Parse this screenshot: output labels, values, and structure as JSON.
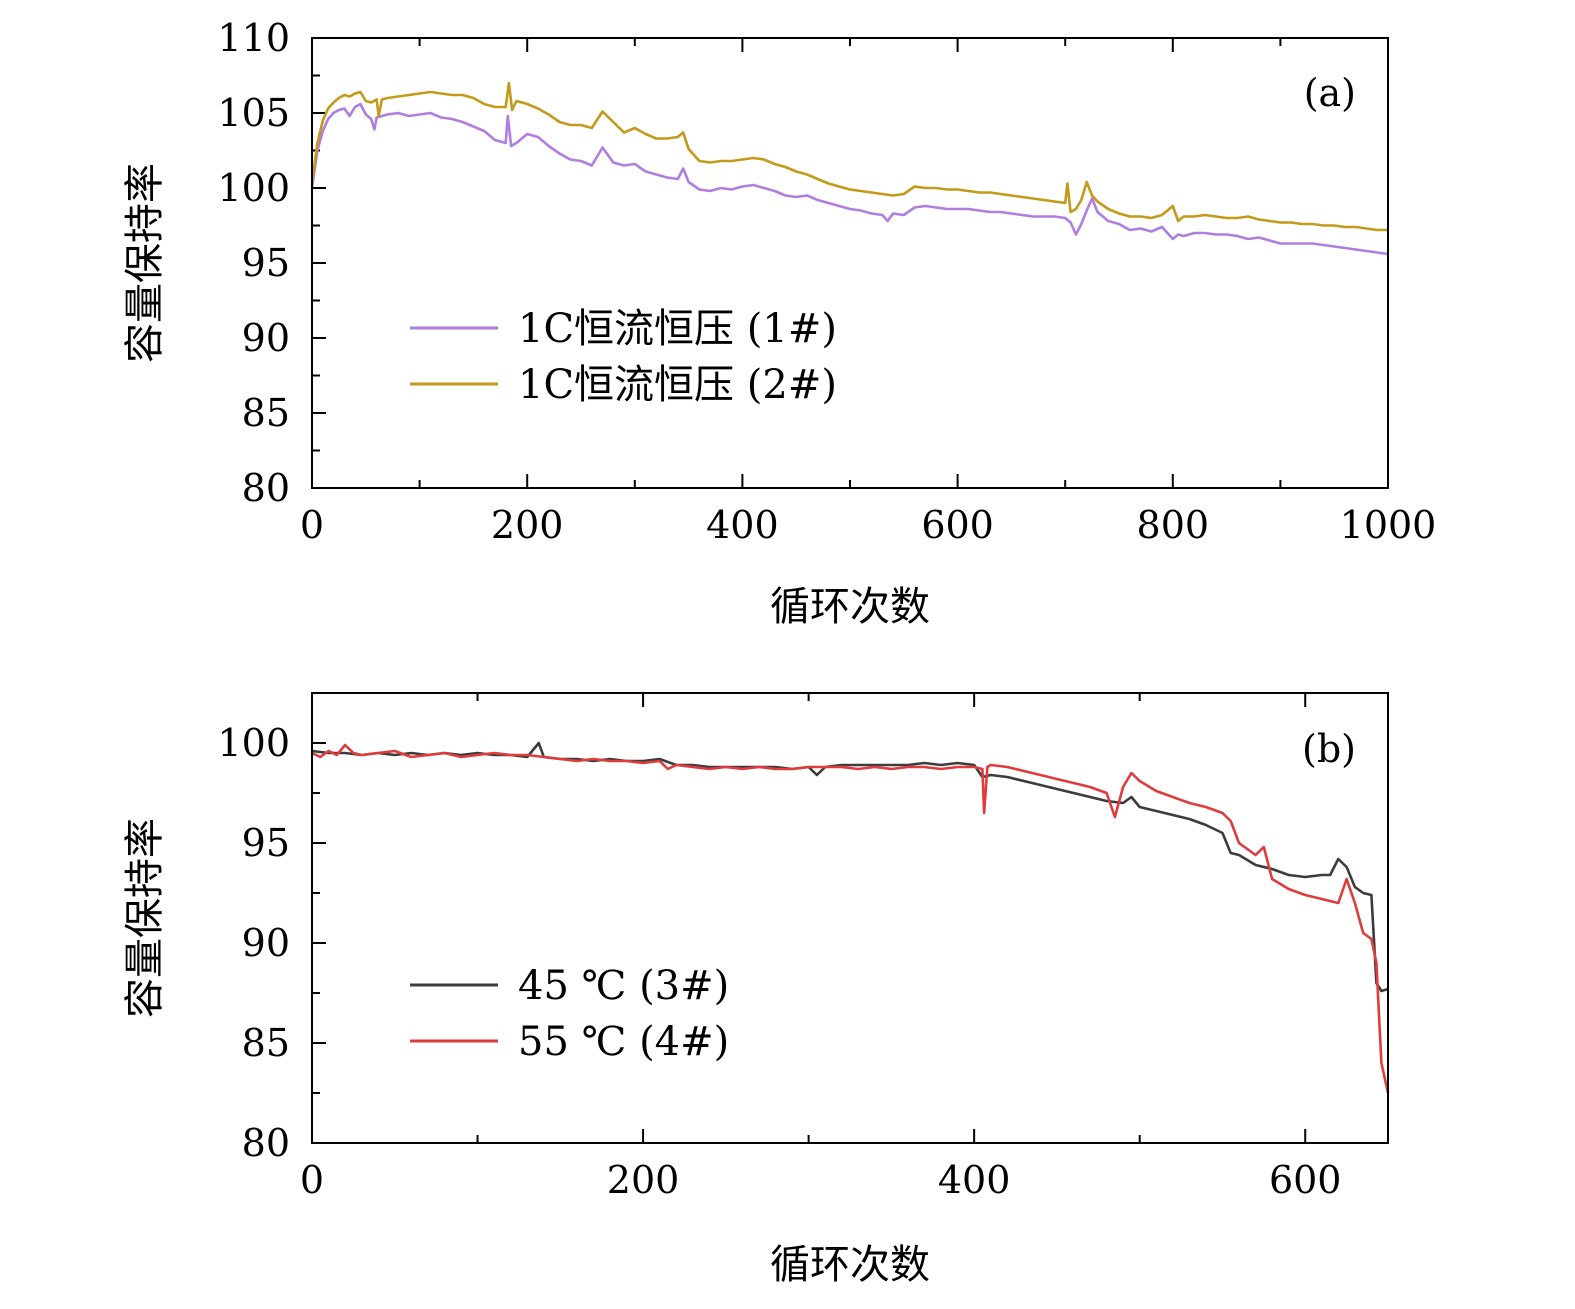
{
  "chart_data": [
    {
      "type": "line",
      "panel_label": "(a)",
      "xlabel": "循环次数",
      "ylabel": "容量保持率",
      "xlim": [
        0,
        1000
      ],
      "ylim": [
        80,
        110
      ],
      "xticks": [
        0,
        200,
        400,
        600,
        800,
        1000
      ],
      "yticks": [
        80,
        85,
        90,
        95,
        100,
        105,
        110
      ],
      "legend_position": "center-left",
      "series": [
        {
          "name": "1C恒流恒压 (1#)",
          "color": "#b07ee0",
          "x": [
            0,
            5,
            10,
            15,
            20,
            25,
            30,
            35,
            40,
            45,
            50,
            55,
            58,
            60,
            65,
            70,
            80,
            90,
            100,
            110,
            120,
            130,
            140,
            150,
            160,
            170,
            180,
            182,
            185,
            190,
            200,
            210,
            220,
            230,
            240,
            250,
            260,
            270,
            280,
            290,
            300,
            310,
            320,
            330,
            340,
            345,
            350,
            360,
            370,
            380,
            390,
            400,
            410,
            420,
            430,
            440,
            450,
            460,
            470,
            480,
            490,
            500,
            510,
            520,
            530,
            535,
            540,
            550,
            560,
            570,
            580,
            590,
            600,
            610,
            620,
            630,
            640,
            650,
            660,
            670,
            680,
            690,
            700,
            705,
            710,
            715,
            720,
            725,
            730,
            740,
            750,
            760,
            770,
            780,
            790,
            800,
            805,
            810,
            820,
            830,
            840,
            850,
            860,
            870,
            880,
            890,
            900,
            910,
            920,
            930,
            940,
            950,
            960,
            970,
            980,
            990,
            1000
          ],
          "values": [
            100.0,
            102.5,
            103.8,
            104.6,
            105.0,
            105.2,
            105.3,
            104.8,
            105.4,
            105.6,
            104.9,
            104.6,
            103.9,
            104.7,
            104.8,
            104.9,
            105.0,
            104.8,
            104.9,
            105.0,
            104.7,
            104.6,
            104.4,
            104.1,
            103.8,
            103.2,
            103.0,
            104.8,
            102.8,
            103.0,
            103.6,
            103.4,
            102.8,
            102.3,
            101.9,
            101.8,
            101.5,
            102.7,
            101.7,
            101.5,
            101.6,
            101.1,
            100.9,
            100.7,
            100.6,
            101.3,
            100.4,
            99.9,
            99.8,
            100.0,
            99.9,
            100.1,
            100.2,
            100.0,
            99.8,
            99.5,
            99.4,
            99.5,
            99.2,
            99.0,
            98.8,
            98.6,
            98.5,
            98.3,
            98.2,
            97.8,
            98.3,
            98.2,
            98.7,
            98.8,
            98.7,
            98.6,
            98.6,
            98.6,
            98.5,
            98.4,
            98.4,
            98.3,
            98.2,
            98.1,
            98.1,
            98.1,
            98.0,
            97.7,
            96.9,
            97.6,
            98.5,
            99.3,
            98.4,
            97.8,
            97.6,
            97.2,
            97.3,
            97.1,
            97.4,
            96.6,
            96.9,
            96.8,
            97.0,
            97.0,
            96.9,
            96.9,
            96.8,
            96.6,
            96.7,
            96.5,
            96.3,
            96.3,
            96.3,
            96.3,
            96.2,
            96.1,
            96.0,
            95.9,
            95.8,
            95.7,
            95.6
          ]
        },
        {
          "name": "1C恒流恒压 (2#)",
          "color": "#c49a1a",
          "x": [
            0,
            5,
            10,
            15,
            20,
            25,
            30,
            35,
            40,
            45,
            50,
            55,
            60,
            62,
            65,
            70,
            80,
            90,
            100,
            110,
            120,
            130,
            140,
            150,
            160,
            170,
            180,
            183,
            186,
            190,
            200,
            210,
            220,
            230,
            240,
            250,
            260,
            270,
            280,
            290,
            300,
            310,
            320,
            330,
            340,
            345,
            350,
            360,
            370,
            380,
            390,
            400,
            410,
            420,
            430,
            440,
            450,
            460,
            470,
            480,
            490,
            500,
            510,
            520,
            530,
            540,
            550,
            560,
            570,
            580,
            590,
            600,
            610,
            620,
            630,
            640,
            650,
            660,
            670,
            680,
            690,
            700,
            702,
            705,
            710,
            715,
            720,
            725,
            730,
            740,
            750,
            760,
            770,
            780,
            790,
            800,
            805,
            810,
            820,
            830,
            840,
            850,
            860,
            870,
            880,
            890,
            900,
            910,
            920,
            930,
            940,
            950,
            960,
            970,
            980,
            990,
            1000
          ],
          "values": [
            100.3,
            103.0,
            104.5,
            105.3,
            105.7,
            106.0,
            106.2,
            106.1,
            106.3,
            106.4,
            105.8,
            105.7,
            105.9,
            104.8,
            105.9,
            106.0,
            106.1,
            106.2,
            106.3,
            106.4,
            106.3,
            106.2,
            106.2,
            106.0,
            105.6,
            105.4,
            105.4,
            107.0,
            105.2,
            105.8,
            105.6,
            105.3,
            104.9,
            104.4,
            104.2,
            104.2,
            104.0,
            105.1,
            104.4,
            103.7,
            104.0,
            103.6,
            103.3,
            103.3,
            103.4,
            103.7,
            102.6,
            101.8,
            101.7,
            101.8,
            101.8,
            101.9,
            102.0,
            101.9,
            101.6,
            101.4,
            101.1,
            100.9,
            100.6,
            100.3,
            100.1,
            99.9,
            99.8,
            99.7,
            99.6,
            99.5,
            99.6,
            100.1,
            100.0,
            100.0,
            99.9,
            99.9,
            99.8,
            99.7,
            99.7,
            99.6,
            99.5,
            99.4,
            99.3,
            99.2,
            99.1,
            99.0,
            100.3,
            98.4,
            98.6,
            99.2,
            100.4,
            99.5,
            99.1,
            98.6,
            98.3,
            98.1,
            98.1,
            98.0,
            98.2,
            98.8,
            97.8,
            98.1,
            98.1,
            98.2,
            98.1,
            98.0,
            98.0,
            98.1,
            97.9,
            97.8,
            97.7,
            97.7,
            97.6,
            97.6,
            97.5,
            97.5,
            97.4,
            97.4,
            97.3,
            97.2,
            97.2
          ]
        }
      ]
    },
    {
      "type": "line",
      "panel_label": "(b)",
      "xlabel": "循环次数",
      "ylabel": "容量保持率",
      "xlim": [
        0,
        650
      ],
      "ylim": [
        80,
        102.5
      ],
      "xticks": [
        0,
        200,
        400,
        600
      ],
      "yticks": [
        80,
        85,
        90,
        95,
        100
      ],
      "legend_position": "bottom-left",
      "series": [
        {
          "name": "45 ℃ (3#)",
          "color": "#3c3c3c",
          "x": [
            0,
            10,
            20,
            30,
            40,
            50,
            60,
            70,
            80,
            90,
            100,
            110,
            120,
            130,
            137,
            140,
            150,
            160,
            170,
            180,
            190,
            200,
            210,
            220,
            230,
            240,
            250,
            260,
            270,
            280,
            290,
            300,
            305,
            310,
            320,
            330,
            340,
            350,
            360,
            370,
            380,
            390,
            400,
            405,
            410,
            420,
            430,
            440,
            450,
            460,
            470,
            480,
            490,
            495,
            500,
            510,
            520,
            530,
            540,
            550,
            555,
            560,
            570,
            580,
            590,
            600,
            610,
            615,
            620,
            625,
            630,
            635,
            640,
            643,
            646,
            650
          ],
          "values": [
            99.6,
            99.5,
            99.5,
            99.4,
            99.5,
            99.4,
            99.5,
            99.4,
            99.5,
            99.4,
            99.5,
            99.4,
            99.4,
            99.3,
            100.0,
            99.3,
            99.2,
            99.2,
            99.1,
            99.2,
            99.1,
            99.1,
            99.2,
            98.9,
            98.9,
            98.8,
            98.8,
            98.8,
            98.8,
            98.8,
            98.7,
            98.8,
            98.4,
            98.8,
            98.9,
            98.9,
            98.9,
            98.9,
            98.9,
            99.0,
            98.9,
            99.0,
            98.9,
            98.3,
            98.4,
            98.3,
            98.1,
            97.9,
            97.7,
            97.5,
            97.3,
            97.1,
            97.0,
            97.3,
            96.8,
            96.6,
            96.4,
            96.2,
            95.9,
            95.5,
            94.5,
            94.4,
            93.9,
            93.7,
            93.4,
            93.3,
            93.4,
            93.4,
            94.2,
            93.8,
            92.8,
            92.5,
            92.4,
            88.0,
            87.6,
            87.7
          ]
        },
        {
          "name": "55 ℃ (4#)",
          "color": "#e03c3c",
          "x": [
            0,
            5,
            10,
            15,
            20,
            25,
            30,
            40,
            50,
            60,
            70,
            80,
            90,
            100,
            110,
            120,
            130,
            140,
            150,
            160,
            170,
            180,
            190,
            200,
            210,
            215,
            220,
            230,
            240,
            250,
            260,
            270,
            280,
            290,
            300,
            310,
            320,
            330,
            340,
            350,
            360,
            370,
            380,
            390,
            400,
            405,
            406,
            408,
            410,
            420,
            430,
            440,
            450,
            460,
            470,
            480,
            485,
            490,
            495,
            500,
            510,
            520,
            530,
            540,
            550,
            555,
            560,
            570,
            575,
            580,
            590,
            600,
            610,
            620,
            625,
            630,
            635,
            640,
            643,
            646,
            650
          ],
          "values": [
            99.5,
            99.3,
            99.6,
            99.4,
            99.9,
            99.5,
            99.4,
            99.5,
            99.6,
            99.3,
            99.4,
            99.5,
            99.3,
            99.4,
            99.5,
            99.4,
            99.4,
            99.3,
            99.2,
            99.1,
            99.2,
            99.1,
            99.1,
            99.0,
            99.1,
            98.7,
            98.9,
            98.8,
            98.7,
            98.8,
            98.7,
            98.8,
            98.7,
            98.7,
            98.8,
            98.8,
            98.8,
            98.7,
            98.8,
            98.7,
            98.8,
            98.8,
            98.7,
            98.8,
            98.8,
            98.7,
            96.5,
            98.8,
            98.9,
            98.8,
            98.6,
            98.4,
            98.2,
            98.0,
            97.8,
            97.5,
            96.3,
            97.8,
            98.5,
            98.1,
            97.6,
            97.3,
            97.0,
            96.8,
            96.5,
            96.1,
            95.0,
            94.4,
            94.8,
            93.2,
            92.7,
            92.4,
            92.2,
            92.0,
            93.2,
            92.0,
            90.5,
            90.2,
            89.0,
            84.0,
            82.5
          ]
        }
      ]
    }
  ]
}
